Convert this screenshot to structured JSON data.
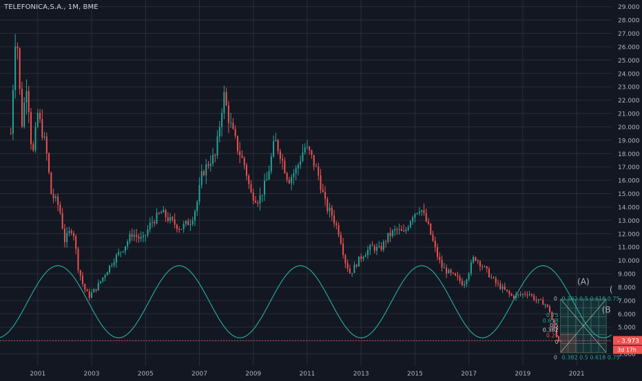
{
  "title": "TELEFONICA,S.A., 1M, BME",
  "colors": {
    "background": "#131722",
    "grid": "#2a2e39",
    "up": "#26a69a",
    "down": "#ef5350",
    "cycle": "#26a69a",
    "axis_text": "#b2b5be",
    "price_badge": "#ef5350",
    "countdown_badge": "#ef5350"
  },
  "chart_data": {
    "type": "candlestick",
    "interval": "1M",
    "x_range": [
      1999.6,
      2022.3
    ],
    "y_range": [
      2.1,
      29.5
    ],
    "y_ticks": [
      3,
      4,
      5,
      6,
      7,
      8,
      9,
      10,
      11,
      12,
      13,
      14,
      15,
      16,
      17,
      18,
      19,
      20,
      21,
      22,
      23,
      24,
      25,
      26,
      27,
      28,
      29
    ],
    "y_tick_labels": [
      "3.000",
      "4.000",
      "5.000",
      "6.000",
      "7.000",
      "8.000",
      "9.000",
      "10.000",
      "11.000",
      "12.000",
      "13.000",
      "14.000",
      "15.000",
      "16.000",
      "17.000",
      "18.000",
      "19.000",
      "20.000",
      "21.000",
      "22.000",
      "23.000",
      "24.000",
      "25.000",
      "26.000",
      "27.000",
      "28.000",
      "29.000"
    ],
    "x_ticks": [
      2001,
      2003,
      2005,
      2007,
      2009,
      2011,
      2013,
      2015,
      2017,
      2019,
      2021
    ],
    "x_tick_labels": [
      "2001",
      "2003",
      "2005",
      "2007",
      "2009",
      "2011",
      "2013",
      "2015",
      "2017",
      "2019",
      "2021"
    ],
    "price_path": [
      [
        2000.0,
        19.5
      ],
      [
        2000.2,
        28.0
      ],
      [
        2000.4,
        20.0
      ],
      [
        2000.6,
        23.5
      ],
      [
        2000.8,
        17.5
      ],
      [
        2001.0,
        21.0
      ],
      [
        2001.3,
        18.5
      ],
      [
        2001.5,
        15.0
      ],
      [
        2001.8,
        14.0
      ],
      [
        2002.0,
        11.5
      ],
      [
        2002.3,
        12.5
      ],
      [
        2002.5,
        9.5
      ],
      [
        2002.7,
        8.0
      ],
      [
        2002.9,
        7.3
      ],
      [
        2003.2,
        8.0
      ],
      [
        2003.5,
        9.0
      ],
      [
        2003.8,
        10.0
      ],
      [
        2004.2,
        11.0
      ],
      [
        2004.5,
        12.0
      ],
      [
        2004.9,
        11.5
      ],
      [
        2005.2,
        12.8
      ],
      [
        2005.6,
        13.6
      ],
      [
        2005.9,
        13.0
      ],
      [
        2006.3,
        12.4
      ],
      [
        2006.7,
        13.0
      ],
      [
        2006.9,
        14.2
      ],
      [
        2007.1,
        16.5
      ],
      [
        2007.4,
        17.5
      ],
      [
        2007.6,
        17.8
      ],
      [
        2007.9,
        22.5
      ],
      [
        2008.1,
        20.5
      ],
      [
        2008.4,
        18.5
      ],
      [
        2008.7,
        17.0
      ],
      [
        2008.9,
        15.0
      ],
      [
        2009.2,
        14.5
      ],
      [
        2009.5,
        16.0
      ],
      [
        2009.8,
        19.0
      ],
      [
        2010.0,
        18.0
      ],
      [
        2010.3,
        16.0
      ],
      [
        2010.6,
        16.8
      ],
      [
        2010.9,
        18.5
      ],
      [
        2011.1,
        18.0
      ],
      [
        2011.4,
        16.5
      ],
      [
        2011.7,
        14.0
      ],
      [
        2011.9,
        13.5
      ],
      [
        2012.2,
        12.0
      ],
      [
        2012.4,
        10.0
      ],
      [
        2012.6,
        9.0
      ],
      [
        2012.9,
        10.0
      ],
      [
        2013.1,
        10.5
      ],
      [
        2013.4,
        11.0
      ],
      [
        2013.7,
        10.8
      ],
      [
        2014.0,
        11.8
      ],
      [
        2014.3,
        12.3
      ],
      [
        2014.6,
        12.0
      ],
      [
        2014.9,
        13.4
      ],
      [
        2015.2,
        14.0
      ],
      [
        2015.5,
        12.5
      ],
      [
        2015.8,
        10.5
      ],
      [
        2016.0,
        9.5
      ],
      [
        2016.3,
        9.0
      ],
      [
        2016.6,
        8.6
      ],
      [
        2016.8,
        8.2
      ],
      [
        2017.0,
        9.2
      ],
      [
        2017.2,
        10.3
      ],
      [
        2017.5,
        9.6
      ],
      [
        2017.8,
        8.8
      ],
      [
        2018.0,
        8.3
      ],
      [
        2018.3,
        7.8
      ],
      [
        2018.6,
        7.3
      ],
      [
        2018.9,
        7.4
      ],
      [
        2019.2,
        7.6
      ],
      [
        2019.5,
        7.0
      ],
      [
        2019.8,
        6.8
      ],
      [
        2020.0,
        6.2
      ],
      [
        2020.2,
        4.6
      ],
      [
        2020.3,
        4.0
      ],
      [
        2020.45,
        3.97
      ]
    ],
    "last_price": "3.973",
    "countdown": "3d 17h",
    "sine_cycle": {
      "peak_year": 2001.75,
      "period_years": 4.5,
      "high": 9.6,
      "low": 4.2
    },
    "annotations": {
      "wave_label_a": "(A)",
      "wave_label_b": "(B",
      "wave_label_c": "(",
      "fib_labels_left": [
        "0.75",
        "0.618",
        "0.5",
        "0.382",
        "0.25",
        "0"
      ],
      "fib_row_top": "0",
      "fib_row_top_values": "0.382 0.5 0.618 0.75",
      "fib_row_bottom": "0",
      "fib_row_bottom_values": "0.382 0.5 0.618 0.75"
    }
  }
}
